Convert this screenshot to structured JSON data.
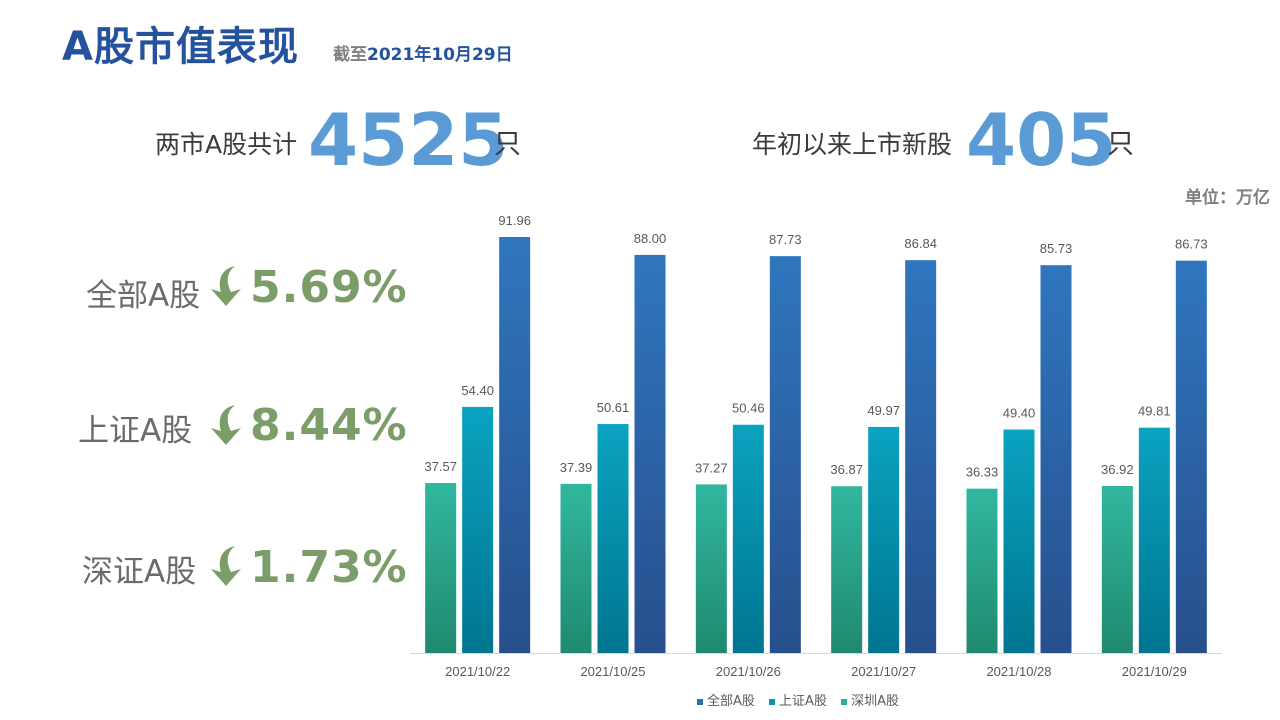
{
  "title": "A股市值表现",
  "as_of_prefix": "截至",
  "as_of_date": "2021年10月29日",
  "stats": {
    "total_label": "两市A股共计",
    "total_value": "4525",
    "total_unit": "只",
    "new_label": "年初以来上市新股",
    "new_value": "405",
    "new_unit": "只"
  },
  "unit_note": "单位：万亿",
  "changes": [
    {
      "label": "全部A股",
      "value": "5.69%",
      "direction": "down",
      "icon": "down-arrow-icon"
    },
    {
      "label": "上证A股",
      "value": "8.44%",
      "direction": "down",
      "icon": "down-arrow-icon"
    },
    {
      "label": "深证A股",
      "value": "1.73%",
      "direction": "down",
      "icon": "down-arrow-icon"
    }
  ],
  "colors": {
    "title": "#24529c",
    "stat_number": "#5b9bd5",
    "change_value": "#7b9d68",
    "series_sz": "#2fb09a",
    "series_sh": "#0596b4",
    "series_all": "#2d6db3"
  },
  "chart_data": {
    "type": "bar",
    "categories": [
      "2021/10/22",
      "2021/10/25",
      "2021/10/26",
      "2021/10/27",
      "2021/10/28",
      "2021/10/29"
    ],
    "series": [
      {
        "name": "深圳A股",
        "values": [
          37.57,
          37.39,
          37.27,
          36.87,
          36.33,
          36.92
        ]
      },
      {
        "name": "上证A股",
        "values": [
          54.4,
          50.61,
          50.46,
          49.97,
          49.4,
          49.81
        ]
      },
      {
        "name": "全部A股",
        "values": [
          91.96,
          88.0,
          87.73,
          86.84,
          85.73,
          86.73
        ]
      }
    ],
    "legend_order": [
      "全部A股",
      "上证A股",
      "深圳A股"
    ],
    "legend_position": "bottom",
    "ylim": [
      0,
      100
    ],
    "grid": false,
    "data_labels": true
  }
}
